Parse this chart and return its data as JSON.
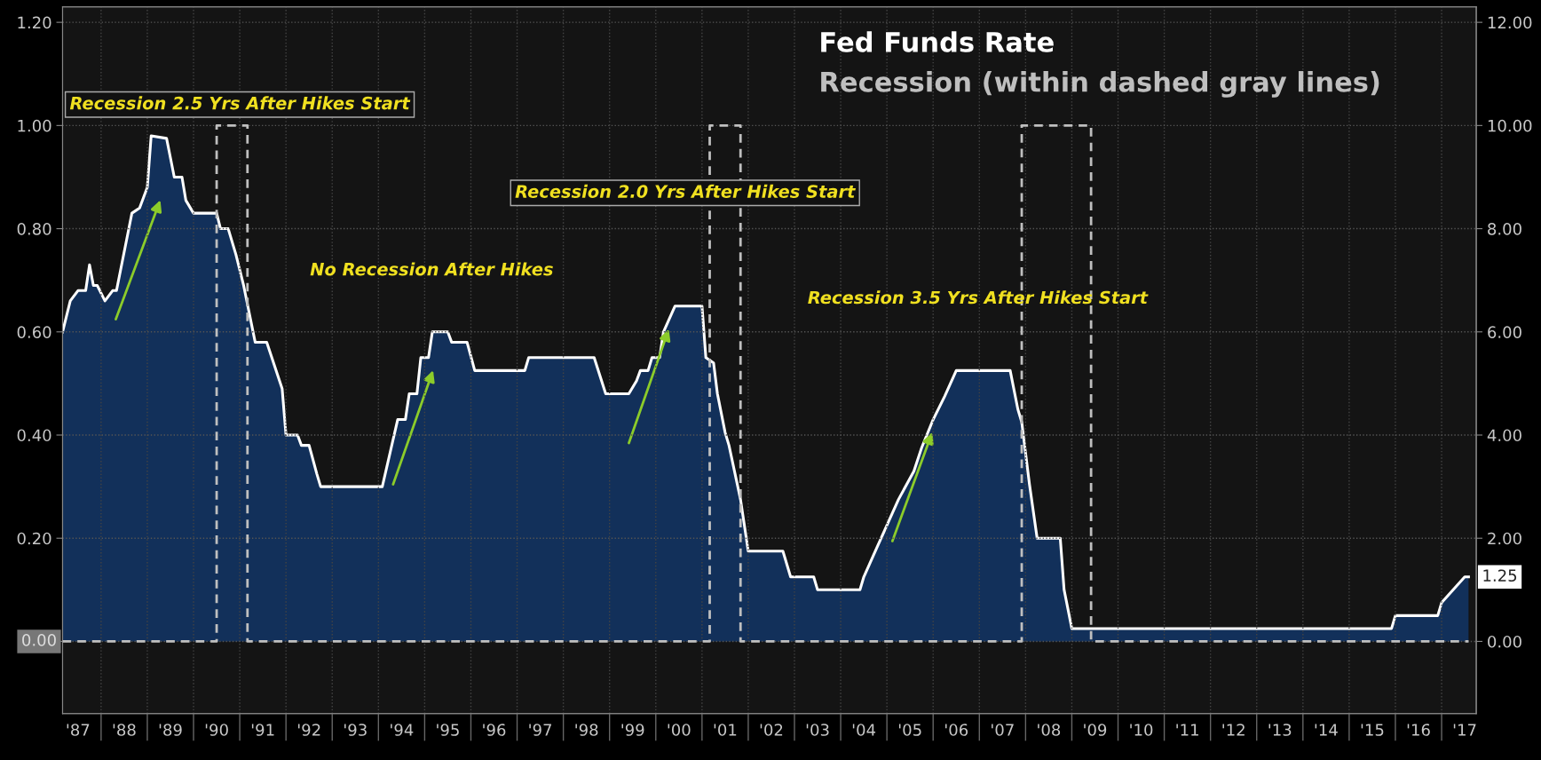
{
  "chart_data": {
    "type": "area",
    "xlim": [
      "1987-03",
      "2017-10"
    ],
    "xticks": [
      {
        "value": "1987-07",
        "label": "'87"
      },
      {
        "value": "1988-01",
        "label": null
      },
      {
        "value": "1988-07",
        "label": "'88"
      },
      {
        "value": "1989-01",
        "label": null
      },
      {
        "value": "1989-07",
        "label": "'89"
      },
      {
        "value": "1990-01",
        "label": null
      },
      {
        "value": "1990-07",
        "label": "'90"
      },
      {
        "value": "1991-01",
        "label": null
      },
      {
        "value": "1991-07",
        "label": "'91"
      },
      {
        "value": "1992-01",
        "label": null
      },
      {
        "value": "1992-07",
        "label": "'92"
      },
      {
        "value": "1993-01",
        "label": null
      },
      {
        "value": "1993-07",
        "label": "'93"
      },
      {
        "value": "1994-01",
        "label": null
      },
      {
        "value": "1994-07",
        "label": "'94"
      },
      {
        "value": "1995-01",
        "label": null
      },
      {
        "value": "1995-07",
        "label": "'95"
      },
      {
        "value": "1996-01",
        "label": null
      },
      {
        "value": "1996-07",
        "label": "'96"
      },
      {
        "value": "1997-01",
        "label": null
      },
      {
        "value": "1997-07",
        "label": "'97"
      },
      {
        "value": "1998-01",
        "label": null
      },
      {
        "value": "1998-07",
        "label": "'98"
      },
      {
        "value": "1999-01",
        "label": null
      },
      {
        "value": "1999-07",
        "label": "'99"
      },
      {
        "value": "2000-01",
        "label": null
      },
      {
        "value": "2000-07",
        "label": "'00"
      },
      {
        "value": "2001-01",
        "label": null
      },
      {
        "value": "2001-07",
        "label": "'01"
      },
      {
        "value": "2002-01",
        "label": null
      },
      {
        "value": "2002-07",
        "label": "'02"
      },
      {
        "value": "2003-01",
        "label": null
      },
      {
        "value": "2003-07",
        "label": "'03"
      },
      {
        "value": "2004-01",
        "label": null
      },
      {
        "value": "2004-07",
        "label": "'04"
      },
      {
        "value": "2005-01",
        "label": null
      },
      {
        "value": "2005-07",
        "label": "'05"
      },
      {
        "value": "2006-01",
        "label": null
      },
      {
        "value": "2006-07",
        "label": "'06"
      },
      {
        "value": "2007-01",
        "label": null
      },
      {
        "value": "2007-07",
        "label": "'07"
      },
      {
        "value": "2008-01",
        "label": null
      },
      {
        "value": "2008-07",
        "label": "'08"
      },
      {
        "value": "2009-01",
        "label": null
      },
      {
        "value": "2009-07",
        "label": "'09"
      },
      {
        "value": "2010-01",
        "label": null
      },
      {
        "value": "2010-07",
        "label": "'10"
      },
      {
        "value": "2011-01",
        "label": null
      },
      {
        "value": "2011-07",
        "label": "'11"
      },
      {
        "value": "2012-01",
        "label": null
      },
      {
        "value": "2012-07",
        "label": "'12"
      },
      {
        "value": "2013-01",
        "label": null
      },
      {
        "value": "2013-07",
        "label": "'13"
      },
      {
        "value": "2014-01",
        "label": null
      },
      {
        "value": "2014-07",
        "label": "'14"
      },
      {
        "value": "2015-01",
        "label": null
      },
      {
        "value": "2015-07",
        "label": "'15"
      },
      {
        "value": "2016-01",
        "label": null
      },
      {
        "value": "2016-07",
        "label": "'16"
      },
      {
        "value": "2017-01",
        "label": null
      },
      {
        "value": "2017-07",
        "label": "'17"
      }
    ],
    "ylim": [
      -0.14,
      1.23
    ],
    "yticks": [
      {
        "value": 0,
        "label": null
      },
      {
        "value": 0.2,
        "label": "0.20"
      },
      {
        "value": 0.4,
        "label": "0.40"
      },
      {
        "value": 0.6,
        "label": "0.60"
      },
      {
        "value": 0.8,
        "label": "0.80"
      },
      {
        "value": 1.0,
        "label": "1.00"
      },
      {
        "value": 1.2,
        "label": "1.20"
      }
    ],
    "y2lim": [
      -1.4,
      12.3
    ],
    "y2ticks": [
      {
        "value": 0,
        "label": "0.00"
      },
      {
        "value": 2,
        "label": "2.00"
      },
      {
        "value": 4,
        "label": "4.00"
      },
      {
        "value": 6,
        "label": "6.00"
      },
      {
        "value": 8,
        "label": "8.00"
      },
      {
        "value": 10,
        "label": "10.00"
      },
      {
        "value": 12,
        "label": "12.00"
      }
    ],
    "grid": true,
    "legend": "top right",
    "annotations": [
      "Recession 2.5 Yrs After Hikes Start",
      "No Recession After Hikes",
      "Recession 2.0 Yrs After Hikes Start",
      "Recession 3.5 Yrs After Hikes Start"
    ],
    "series": [
      {
        "name": "Fed Funds Rate",
        "axis": "y2",
        "color": "#12305a",
        "x": [
          "1987-03",
          "1987-05",
          "1987-07",
          "1987-09",
          "1987-10",
          "1987-11",
          "1987-12",
          "1988-02",
          "1988-04",
          "1988-05",
          "1988-09",
          "1988-11",
          "1989-01",
          "1989-02",
          "1989-06",
          "1989-08",
          "1989-10",
          "1989-11",
          "1990-01",
          "1990-07",
          "1990-08",
          "1990-10",
          "1990-12",
          "1991-02",
          "1991-05",
          "1991-08",
          "1991-12",
          "1992-01",
          "1992-04",
          "1992-05",
          "1992-07",
          "1992-09",
          "1992-10",
          "1994-02",
          "1994-06",
          "1994-08",
          "1994-09",
          "1994-11",
          "1994-12",
          "1995-02",
          "1995-03",
          "1995-07",
          "1995-08",
          "1995-12",
          "1996-02",
          "1997-03",
          "1997-04",
          "1998-09",
          "1998-12",
          "1999-06",
          "1999-08",
          "1999-09",
          "1999-11",
          "1999-12",
          "2000-02",
          "2000-03",
          "2000-06",
          "2001-01",
          "2001-02",
          "2001-04",
          "2001-05",
          "2001-07",
          "2001-08",
          "2001-11",
          "2002-01",
          "2002-10",
          "2002-12",
          "2003-06",
          "2003-07",
          "2004-06",
          "2004-07",
          "2004-10",
          "2005-01",
          "2005-04",
          "2005-08",
          "2005-10",
          "2006-01",
          "2006-04",
          "2006-07",
          "2007-09",
          "2007-11",
          "2007-12",
          "2008-02",
          "2008-04",
          "2008-10",
          "2008-11",
          "2009-01",
          "2015-12",
          "2016-01",
          "2016-12",
          "2017-01",
          "2017-04",
          "2017-07",
          "2017-08"
        ],
        "values": [
          6.0,
          6.6,
          6.8,
          6.8,
          7.3,
          6.9,
          6.9,
          6.6,
          6.8,
          6.8,
          8.3,
          8.4,
          8.8,
          9.8,
          9.75,
          9.0,
          9.0,
          8.55,
          8.3,
          8.3,
          8.0,
          8.0,
          7.5,
          6.9,
          5.8,
          5.8,
          4.9,
          4.0,
          4.0,
          3.8,
          3.8,
          3.25,
          3.0,
          3.0,
          4.3,
          4.3,
          4.8,
          4.8,
          5.5,
          5.5,
          6.0,
          6.0,
          5.8,
          5.8,
          5.25,
          5.25,
          5.5,
          5.5,
          4.8,
          4.8,
          5.05,
          5.25,
          5.25,
          5.5,
          5.5,
          6.0,
          6.5,
          6.5,
          5.5,
          5.4,
          4.8,
          4.05,
          3.8,
          2.75,
          1.75,
          1.75,
          1.25,
          1.25,
          1.0,
          1.0,
          1.25,
          1.75,
          2.25,
          2.75,
          3.3,
          3.75,
          4.3,
          4.75,
          5.25,
          5.25,
          4.5,
          4.25,
          3.05,
          2.0,
          2.0,
          1.0,
          0.25,
          0.25,
          0.5,
          0.5,
          0.75,
          1.0,
          1.25,
          1.25
        ],
        "value_labels": [
          null,
          null,
          null,
          null,
          null,
          null,
          null,
          null,
          null,
          null,
          null,
          null,
          null,
          null,
          null,
          null,
          null,
          null,
          null,
          null,
          null,
          null,
          null,
          null,
          null,
          null,
          null,
          null,
          null,
          null,
          null,
          null,
          null,
          null,
          null,
          null,
          null,
          null,
          null,
          null,
          null,
          null,
          null,
          null,
          null,
          null,
          null,
          null,
          null,
          null,
          null,
          null,
          null,
          null,
          null,
          null,
          null,
          null,
          null,
          null,
          null,
          null,
          null,
          null,
          null,
          null,
          null,
          null,
          null,
          null,
          null,
          null,
          null,
          null,
          null,
          null,
          null,
          null,
          null,
          null,
          null,
          null,
          null,
          null,
          null,
          null,
          null,
          null,
          null,
          null,
          null,
          null,
          null,
          "1.25"
        ]
      },
      {
        "name": "Recession (within dashed gray lines)",
        "type": "step",
        "axis": "y",
        "color": "#bfbfbf",
        "line_style": "dashed",
        "x": [
          "1987-03",
          "1990-07",
          "1991-03",
          "2001-03",
          "2001-11",
          "2007-12",
          "2009-06",
          "2017-08"
        ],
        "values": [
          0,
          1,
          0,
          1,
          0,
          1,
          0,
          0
        ],
        "value_labels": [
          "0.00",
          null,
          null,
          null,
          null,
          null,
          null,
          null
        ]
      }
    ]
  }
}
